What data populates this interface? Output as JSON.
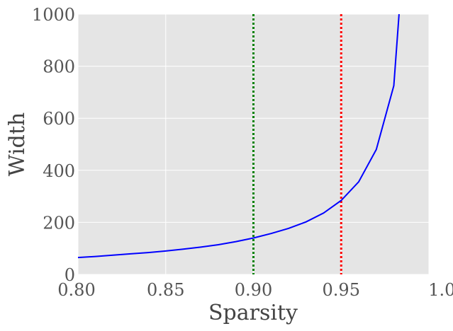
{
  "chart_data": {
    "type": "line",
    "xlabel": "Sparsity",
    "ylabel": "Width",
    "xlim": [
      0.8,
      1.0
    ],
    "ylim": [
      0,
      1000
    ],
    "xticks": [
      "0.80",
      "0.85",
      "0.90",
      "0.95",
      "1.00"
    ],
    "yticks": [
      "0",
      "200",
      "400",
      "600",
      "800",
      "1000"
    ],
    "grid": true,
    "background_color": "#e5e5e5",
    "grid_color": "#ffffff",
    "series": [
      {
        "color": "#0000ff",
        "x": [
          0.8,
          0.81,
          0.82,
          0.83,
          0.84,
          0.85,
          0.86,
          0.87,
          0.88,
          0.89,
          0.9,
          0.91,
          0.92,
          0.93,
          0.94,
          0.95,
          0.96,
          0.97,
          0.98,
          0.983
        ],
        "y": [
          65,
          69,
          74,
          79,
          84,
          90,
          97,
          105,
          114,
          126,
          140,
          157,
          177,
          202,
          236,
          284,
          356,
          480,
          725,
          1000
        ]
      }
    ],
    "reference_lines": [
      {
        "x": 0.9,
        "color": "#008000",
        "style": "dotted"
      },
      {
        "x": 0.95,
        "color": "#ff0000",
        "style": "dotted"
      }
    ]
  }
}
